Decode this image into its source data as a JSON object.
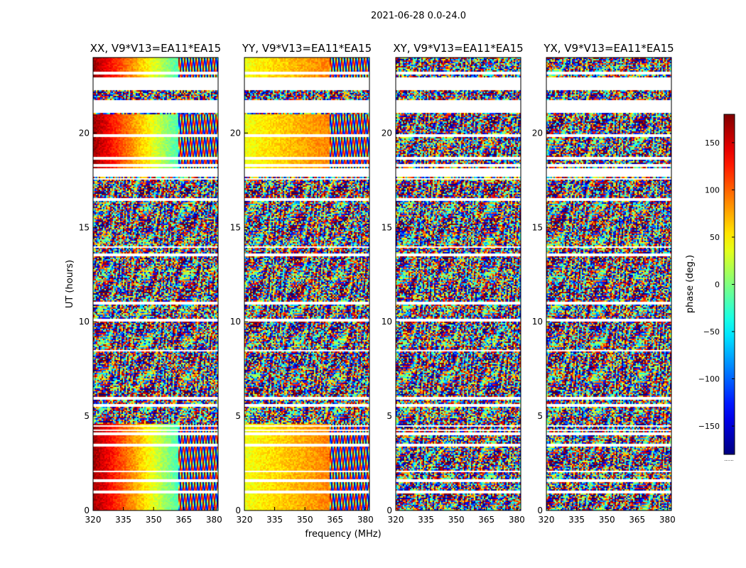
{
  "figure": {
    "suptitle": "2021-06-28 0.0-24.0",
    "ylabel": "UT (hours)",
    "xlabel": "frequency (MHz)"
  },
  "chart_data": {
    "type": "heatmap",
    "xlim": [
      320,
      382
    ],
    "ylim": [
      0,
      24
    ],
    "xticks": [
      320,
      335,
      350,
      365,
      380
    ],
    "yticks": [
      0,
      5,
      10,
      15,
      20
    ],
    "panels": [
      {
        "title": "XX, V9*V13=EA11*EA15",
        "pol": "XX",
        "coherent_phase": true,
        "phase_start": 170,
        "phase_end": -20
      },
      {
        "title": "YY, V9*V13=EA11*EA15",
        "pol": "YY",
        "coherent_phase": true,
        "phase_start": 40,
        "phase_end": 90
      },
      {
        "title": "XY, V9*V13=EA11*EA15",
        "pol": "XY",
        "coherent_phase": false
      },
      {
        "title": "YX, V9*V13=EA11*EA15",
        "pol": "YX",
        "coherent_phase": false
      }
    ],
    "flagged_rows_hours": [
      23.2,
      22.9,
      22.5,
      21.3,
      19.9,
      18.3,
      17.8,
      17.6,
      16.5,
      14.0,
      13.6,
      11.0,
      10.1,
      8.5,
      6.0,
      5.6,
      4.5,
      4.3,
      4.1,
      3.5,
      2.1,
      1.6,
      1.0
    ],
    "flagged_blocks_hours": [
      [
        22.3,
        23.0
      ],
      [
        21.1,
        21.8
      ],
      [
        18.6,
        18.8
      ],
      [
        17.8,
        18.2
      ]
    ],
    "colorbar": {
      "label": "phase (deg.)",
      "range": [
        -180,
        180
      ],
      "ticks": [
        150,
        100,
        50,
        0,
        -50,
        -100,
        -150
      ],
      "tick_labels": [
        "150",
        "100",
        "50",
        "0",
        "−50",
        "−100",
        "−150"
      ],
      "footer": "......"
    }
  }
}
